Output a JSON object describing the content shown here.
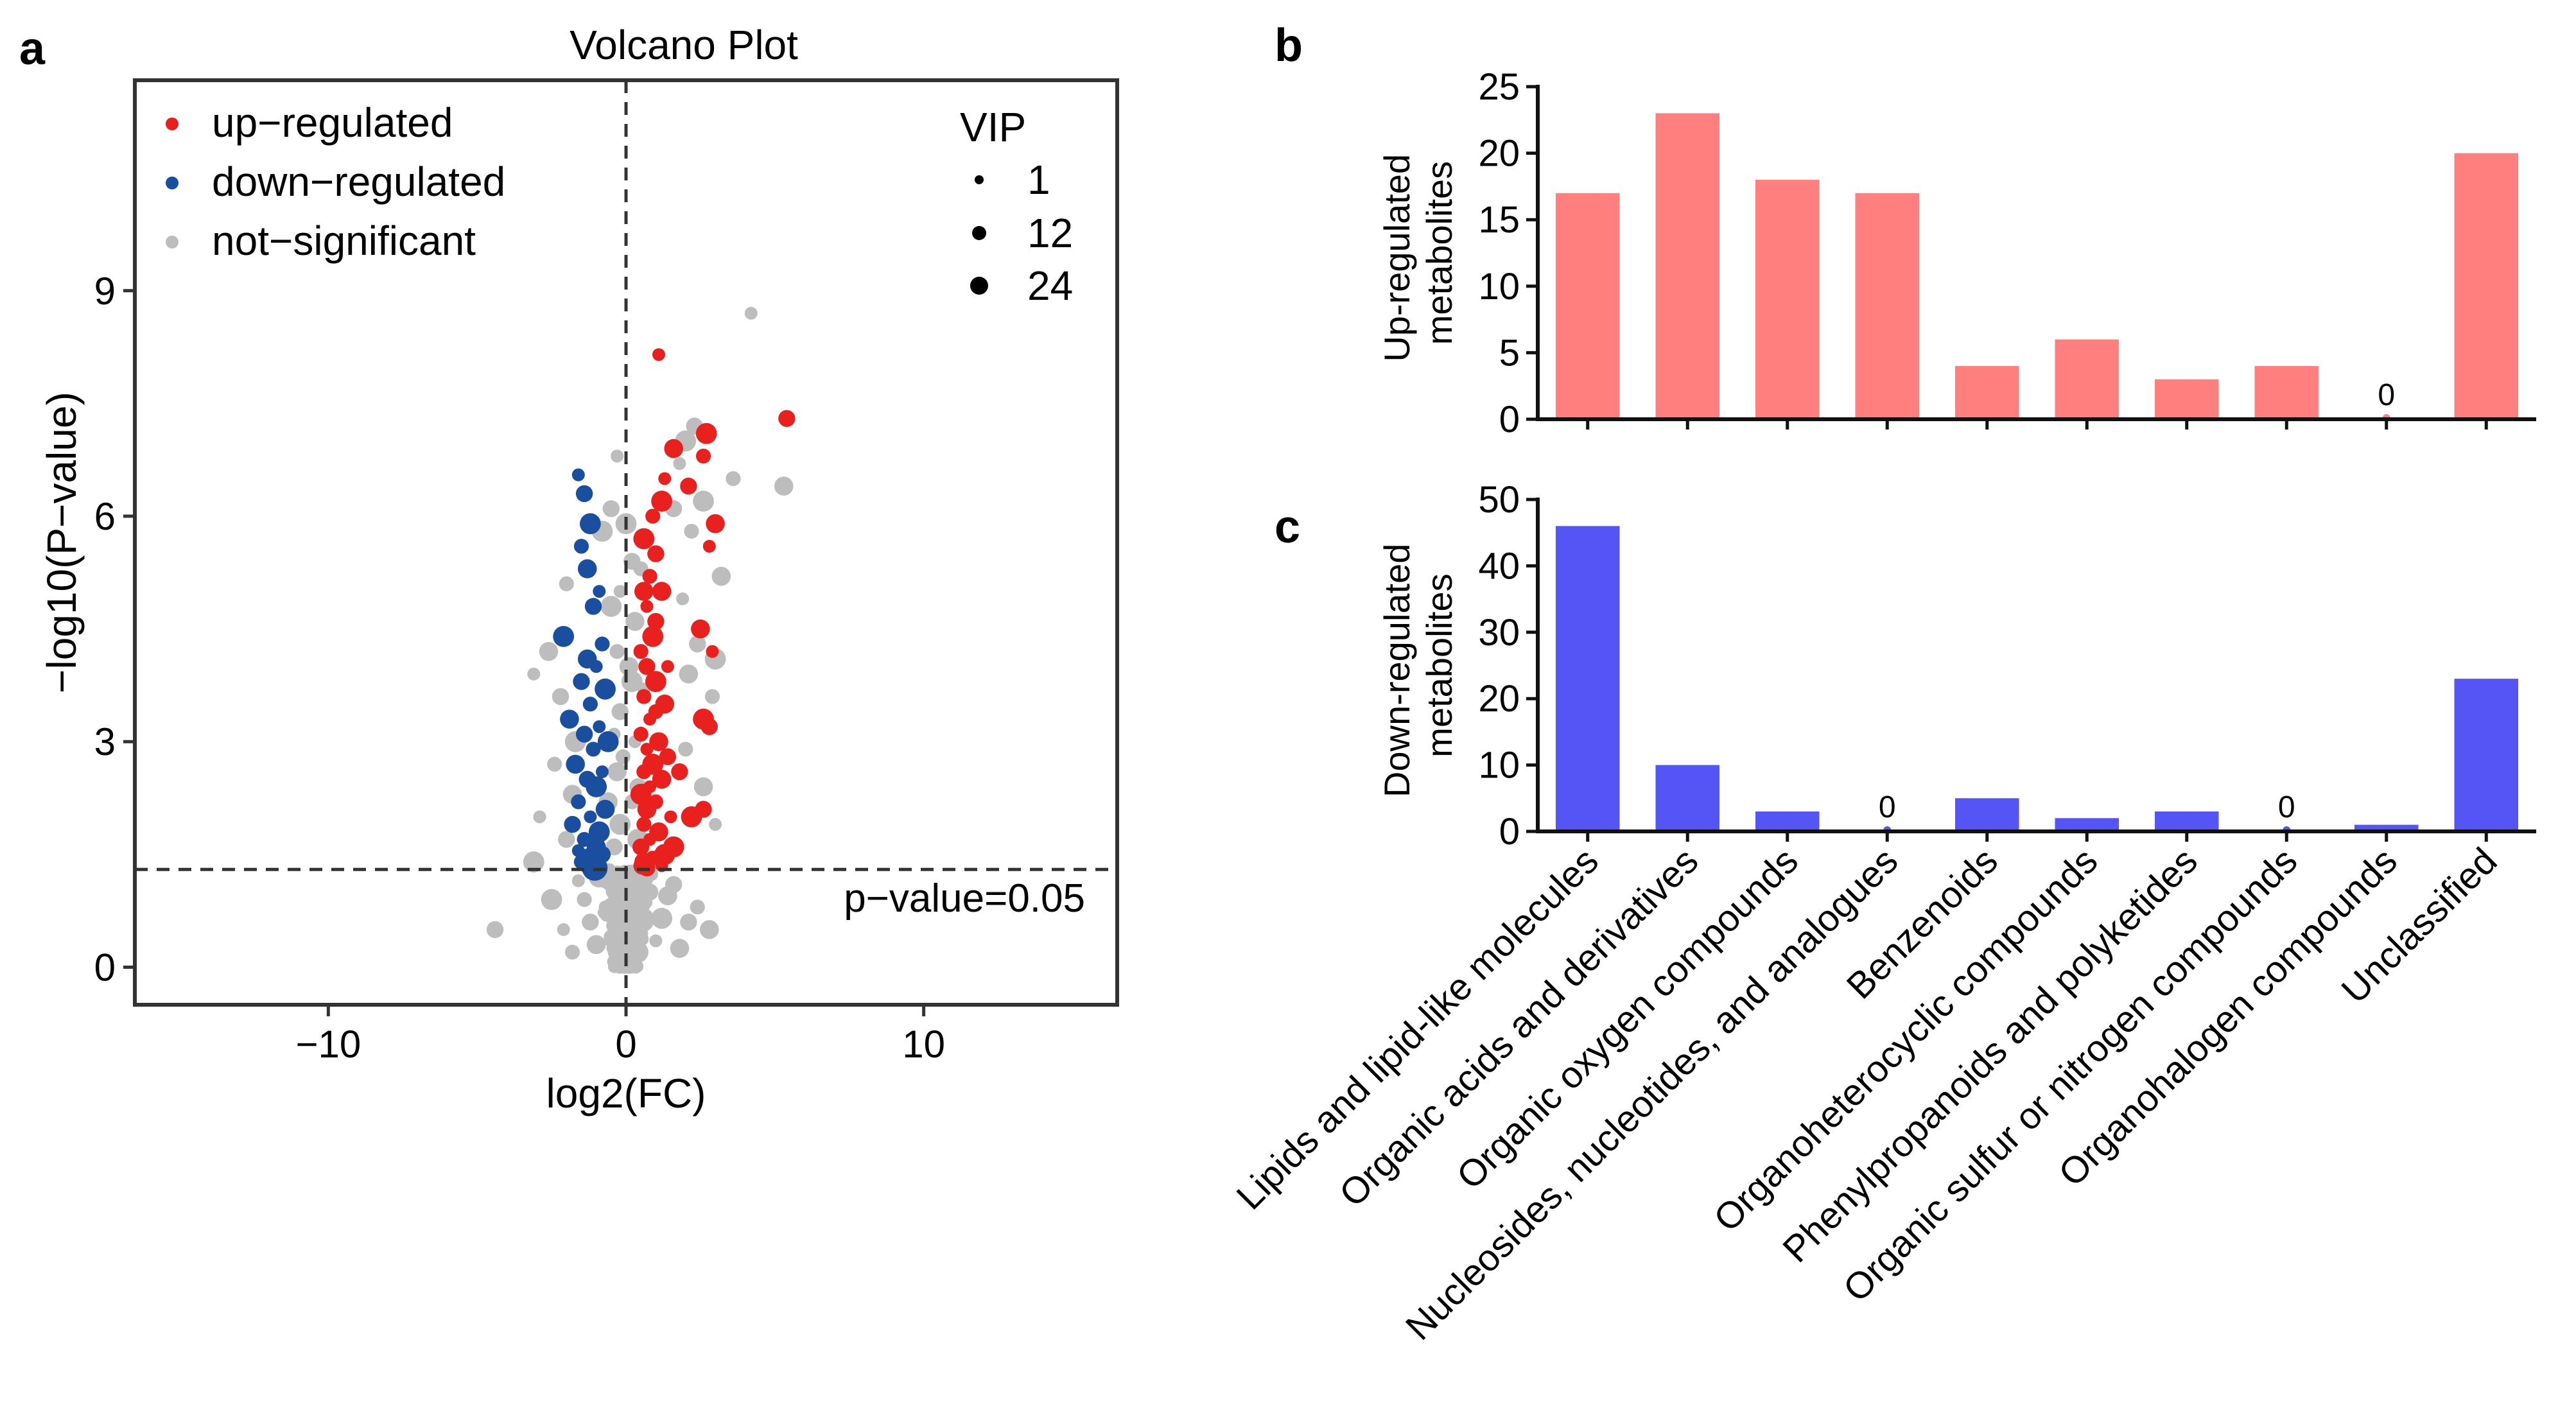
{
  "figure": {
    "panel_labels": {
      "a": "a",
      "b": "b",
      "c": "c"
    }
  },
  "colors": {
    "up": "#E8211E",
    "down": "#1A4FA0",
    "ns": "#BDBDBD",
    "bar_up": "#FF7F7F",
    "bar_down": "#5555F5",
    "axis": "#222222"
  },
  "chart_data": [
    {
      "id": "volcano",
      "type": "scatter",
      "title": "Volcano Plot",
      "xlabel": "log2(FC)",
      "ylabel": "−log10(P−value)",
      "xlim": [
        -16.5,
        16.5
      ],
      "ylim": [
        -0.5,
        11.8
      ],
      "xticks": [
        -10,
        0,
        10
      ],
      "xtick_labels": [
        "−10",
        "0",
        "10"
      ],
      "yticks": [
        0,
        3,
        6,
        9
      ],
      "ytick_labels": [
        "0",
        "3",
        "6",
        "9"
      ],
      "threshold_label": "p−value=0.05",
      "threshold_y": 1.3,
      "vline_x": 0,
      "legend": {
        "groups": [
          {
            "key": "up",
            "label": "up−regulated"
          },
          {
            "key": "down",
            "label": "down−regulated"
          },
          {
            "key": "ns",
            "label": "not−significant"
          }
        ],
        "size_title": "VIP",
        "sizes": [
          {
            "label": "1",
            "vip": 1
          },
          {
            "label": "12",
            "vip": 12
          },
          {
            "label": "24",
            "vip": 24
          }
        ]
      },
      "series": {
        "up": [
          [
            1.1,
            8.15
          ],
          [
            5.4,
            7.3
          ],
          [
            2.7,
            7.1
          ],
          [
            2.6,
            6.8
          ],
          [
            1.6,
            6.9
          ],
          [
            1.3,
            6.5
          ],
          [
            2.1,
            6.4
          ],
          [
            1.2,
            6.2
          ],
          [
            0.9,
            6.0
          ],
          [
            3.0,
            5.9
          ],
          [
            2.8,
            5.6
          ],
          [
            1.0,
            5.5
          ],
          [
            0.6,
            5.7
          ],
          [
            0.8,
            5.2
          ],
          [
            1.2,
            5.0
          ],
          [
            0.7,
            4.8
          ],
          [
            1.0,
            4.6
          ],
          [
            0.9,
            4.4
          ],
          [
            0.5,
            4.2
          ],
          [
            2.5,
            4.5
          ],
          [
            2.9,
            4.2
          ],
          [
            0.7,
            4.0
          ],
          [
            1.0,
            3.8
          ],
          [
            0.6,
            3.6
          ],
          [
            1.3,
            3.5
          ],
          [
            0.8,
            3.3
          ],
          [
            2.8,
            3.2
          ],
          [
            2.6,
            3.3
          ],
          [
            0.5,
            3.1
          ],
          [
            1.1,
            3.0
          ],
          [
            0.7,
            2.9
          ],
          [
            1.4,
            2.8
          ],
          [
            0.9,
            2.7
          ],
          [
            0.6,
            2.6
          ],
          [
            1.2,
            2.5
          ],
          [
            0.8,
            2.4
          ],
          [
            1.8,
            2.6
          ],
          [
            0.5,
            2.3
          ],
          [
            1.0,
            2.2
          ],
          [
            0.7,
            2.1
          ],
          [
            1.5,
            2.0
          ],
          [
            2.6,
            2.1
          ],
          [
            2.2,
            2.0
          ],
          [
            0.6,
            1.9
          ],
          [
            1.1,
            1.8
          ],
          [
            0.8,
            1.7
          ],
          [
            0.5,
            1.6
          ],
          [
            1.3,
            1.5
          ],
          [
            0.9,
            1.45
          ],
          [
            0.6,
            1.4
          ],
          [
            1.2,
            1.35
          ],
          [
            0.7,
            1.32
          ],
          [
            1.6,
            1.6
          ],
          [
            1.0,
            3.4
          ],
          [
            0.6,
            5.0
          ],
          [
            1.4,
            4.0
          ]
        ],
        "down": [
          [
            -1.6,
            6.55
          ],
          [
            -1.4,
            6.3
          ],
          [
            -1.2,
            5.9
          ],
          [
            -1.5,
            5.6
          ],
          [
            -1.3,
            5.3
          ],
          [
            -0.9,
            5.0
          ],
          [
            -1.1,
            4.8
          ],
          [
            -2.1,
            4.4
          ],
          [
            -0.8,
            4.3
          ],
          [
            -1.3,
            4.1
          ],
          [
            -1.0,
            4.0
          ],
          [
            -1.5,
            3.8
          ],
          [
            -0.7,
            3.7
          ],
          [
            -1.2,
            3.5
          ],
          [
            -1.9,
            3.3
          ],
          [
            -0.9,
            3.2
          ],
          [
            -1.4,
            3.1
          ],
          [
            -0.6,
            3.0
          ],
          [
            -1.1,
            2.9
          ],
          [
            -1.7,
            2.7
          ],
          [
            -0.8,
            2.6
          ],
          [
            -1.3,
            2.5
          ],
          [
            -1.0,
            2.4
          ],
          [
            -1.6,
            2.2
          ],
          [
            -0.7,
            2.1
          ],
          [
            -1.2,
            2.0
          ],
          [
            -1.8,
            1.9
          ],
          [
            -0.9,
            1.8
          ],
          [
            -1.4,
            1.7
          ],
          [
            -1.0,
            1.6
          ],
          [
            -1.6,
            1.55
          ],
          [
            -0.8,
            1.5
          ],
          [
            -1.2,
            1.45
          ],
          [
            -1.5,
            1.4
          ],
          [
            -1.0,
            1.35
          ],
          [
            -1.3,
            1.32
          ]
        ],
        "ns": [
          [
            4.2,
            8.7
          ],
          [
            2.3,
            7.2
          ],
          [
            2.0,
            7.0
          ],
          [
            3.6,
            6.5
          ],
          [
            5.3,
            6.4
          ],
          [
            1.8,
            6.7
          ],
          [
            1.6,
            6.1
          ],
          [
            2.6,
            6.2
          ],
          [
            2.2,
            5.8
          ],
          [
            3.2,
            5.2
          ],
          [
            1.9,
            4.9
          ],
          [
            2.4,
            4.3
          ],
          [
            3.0,
            4.1
          ],
          [
            2.9,
            3.6
          ],
          [
            2.1,
            3.9
          ],
          [
            -0.3,
            6.8
          ],
          [
            -0.5,
            6.1
          ],
          [
            -0.8,
            5.8
          ],
          [
            -2.0,
            5.1
          ],
          [
            -2.6,
            4.2
          ],
          [
            -3.1,
            3.9
          ],
          [
            -2.2,
            3.6
          ],
          [
            -1.7,
            3.0
          ],
          [
            -2.4,
            2.7
          ],
          [
            -1.8,
            2.3
          ],
          [
            -2.9,
            2.0
          ],
          [
            -2.0,
            1.7
          ],
          [
            -3.1,
            1.4
          ],
          [
            2.0,
            2.9
          ],
          [
            2.6,
            2.4
          ],
          [
            3.0,
            1.9
          ],
          [
            -4.4,
            0.5
          ],
          [
            -2.5,
            0.9
          ],
          [
            2.4,
            0.8
          ],
          [
            2.8,
            0.5
          ],
          [
            -0.3,
            0.1
          ],
          [
            -0.1,
            0.3
          ],
          [
            0.2,
            0.5
          ],
          [
            -0.4,
            0.7
          ],
          [
            0.3,
            0.9
          ],
          [
            -0.2,
            1.1
          ],
          [
            0.1,
            1.25
          ],
          [
            0.4,
            0.2
          ],
          [
            -0.5,
            0.4
          ],
          [
            0.6,
            0.6
          ],
          [
            -0.7,
            0.8
          ],
          [
            0.8,
            1.0
          ],
          [
            -0.9,
            1.2
          ],
          [
            0.0,
            0.05
          ],
          [
            -1.0,
            0.3
          ],
          [
            1.0,
            0.35
          ],
          [
            -1.2,
            0.6
          ],
          [
            1.2,
            0.65
          ],
          [
            -1.4,
            0.9
          ],
          [
            1.4,
            0.95
          ],
          [
            -1.6,
            1.15
          ],
          [
            1.6,
            1.1
          ],
          [
            -0.2,
            1.9
          ],
          [
            0.2,
            2.2
          ],
          [
            -0.3,
            2.6
          ],
          [
            0.3,
            3.0
          ],
          [
            -0.2,
            3.4
          ],
          [
            0.2,
            3.8
          ],
          [
            -0.3,
            4.2
          ],
          [
            0.3,
            4.6
          ],
          [
            -0.2,
            5.0
          ],
          [
            0.2,
            5.4
          ],
          [
            0.0,
            5.9
          ],
          [
            -0.1,
            2.8
          ],
          [
            0.1,
            4.0
          ],
          [
            -0.4,
            3.1
          ],
          [
            0.4,
            2.4
          ],
          [
            -0.5,
            4.8
          ],
          [
            0.5,
            5.3
          ],
          [
            -0.6,
            2.2
          ],
          [
            0.6,
            3.7
          ],
          [
            -0.4,
            1.6
          ],
          [
            0.4,
            1.7
          ],
          [
            -1.8,
            0.2
          ],
          [
            1.8,
            0.25
          ],
          [
            -2.1,
            0.5
          ],
          [
            2.1,
            0.6
          ]
        ]
      }
    },
    {
      "id": "up-bars",
      "type": "bar",
      "ylabel": "Up-regulated\nmetabolites",
      "ylim": [
        0,
        25
      ],
      "yticks": [
        0,
        5,
        10,
        15,
        20,
        25
      ],
      "values": [
        17,
        23,
        18,
        17,
        4,
        6,
        3,
        4,
        0,
        20
      ],
      "zero_label": "0"
    },
    {
      "id": "down-bars",
      "type": "bar",
      "ylabel": "Down-regulated\nmetabolites",
      "ylim": [
        0,
        50
      ],
      "yticks": [
        0,
        10,
        20,
        30,
        40,
        50
      ],
      "values": [
        46,
        10,
        3,
        0,
        5,
        2,
        3,
        0,
        1,
        23
      ],
      "zero_label": "0"
    }
  ],
  "categories": [
    "Lipids and lipid-like molecules",
    "Organic acids and derivatives",
    "Organic oxygen compounds",
    "Nucleosides, nucleotides, and analogues",
    "Benzenoids",
    "Organoheterocyclic compounds",
    "Phenylpropanoids and polyketides",
    "Organic sulfur or nitrogen compounds",
    "Organohalogen compounds",
    "Unclassified"
  ]
}
